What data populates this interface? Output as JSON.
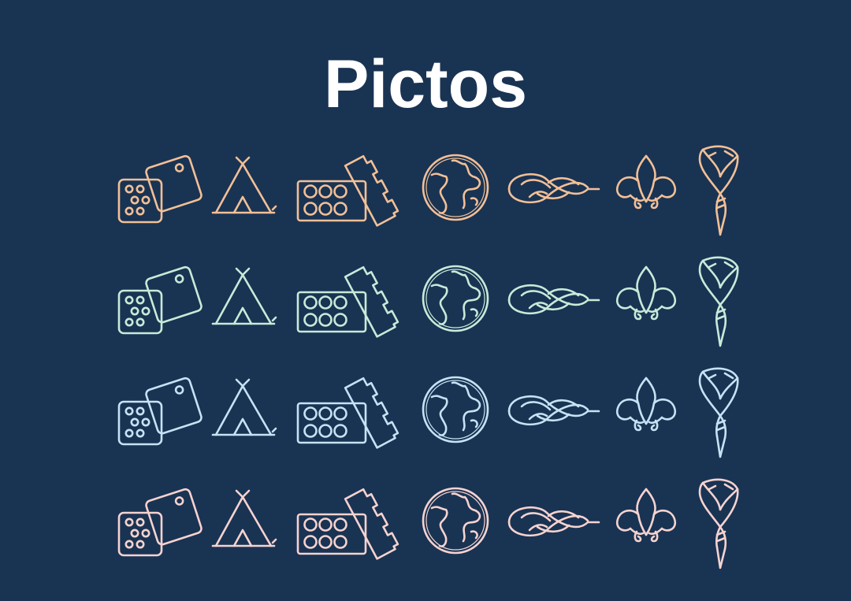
{
  "title": "Pictos",
  "icon_names": [
    "dice-icon",
    "tipi-icon",
    "building-bricks-icon",
    "globe-icon",
    "knot-icon",
    "fleur-de-lis-icon",
    "scarf-woggle-icon"
  ],
  "rows": [
    {
      "name": "orange",
      "color": "#f2c096"
    },
    {
      "name": "mint",
      "color": "#c8ead8"
    },
    {
      "name": "light-blue",
      "color": "#c6e2f4"
    },
    {
      "name": "pink",
      "color": "#f6d3cf"
    }
  ]
}
